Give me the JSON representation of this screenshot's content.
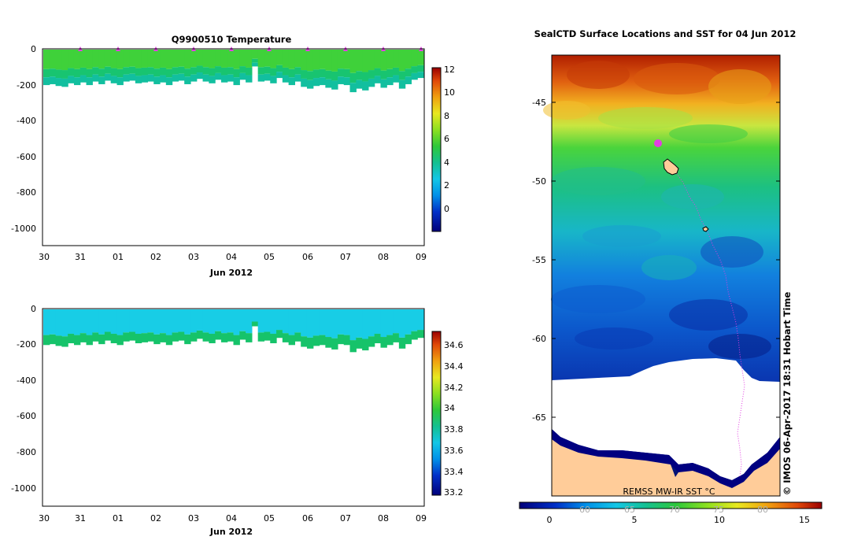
{
  "left_top": {
    "title": "Q9900510  Temperature",
    "y_ticks": [
      "0",
      "-200",
      "-400",
      "-600",
      "-800",
      "-1000"
    ],
    "x_ticks": [
      "30",
      "31",
      "01",
      "02",
      "03",
      "04",
      "05",
      "06",
      "07",
      "08",
      "09"
    ],
    "x_label": "Jun 2012",
    "colorbar_ticks": [
      "12",
      "10",
      "8",
      "6",
      "4",
      "2",
      "0"
    ]
  },
  "left_bottom": {
    "y_ticks": [
      "0",
      "-200",
      "-400",
      "-600",
      "-800",
      "-1000"
    ],
    "x_ticks": [
      "30",
      "31",
      "01",
      "02",
      "03",
      "04",
      "05",
      "06",
      "07",
      "08",
      "09"
    ],
    "x_label": "Jun 2012",
    "colorbar_ticks": [
      "34.6",
      "34.4",
      "34.2",
      "34",
      "33.8",
      "33.6",
      "33.4",
      "33.2"
    ]
  },
  "map": {
    "title": "SealCTD Surface Locations and SST for 04 Jun 2012",
    "lat_ticks": [
      "-45",
      "-50",
      "-55",
      "-60",
      "-65"
    ],
    "side_label": "© IMOS 06-Apr-2017 18:31 Hobart Time",
    "source_label": "REMSS MW-IR SST °C",
    "colorbar_ticks": [
      "0",
      "5",
      "10",
      "15"
    ],
    "colorbar_faint_ticks": [
      "60",
      "65",
      "70",
      "75",
      "80"
    ]
  },
  "colors": {
    "temp_surface": "#3fd13a",
    "temp_mid": "#18c470",
    "temp_deep": "#12bf9f",
    "sal_surface": "#18cde6",
    "sal_deep": "#16c36a",
    "marker": "#e23ee2",
    "land": "#ffcc99",
    "ice": "#ffffff",
    "coast": "#000080"
  },
  "chart_data": [
    {
      "type": "heatmap",
      "title": "Q9900510  Temperature",
      "xlabel": "Jun 2012",
      "ylabel": "",
      "x_categories": [
        "30",
        "31",
        "01",
        "02",
        "03",
        "04",
        "05",
        "06",
        "07",
        "08",
        "09"
      ],
      "ylim": [
        -1100,
        0
      ],
      "colorbar_range": [
        -1.5,
        12.5
      ],
      "profile_max_depth": [
        200,
        195,
        205,
        210,
        190,
        200,
        185,
        200,
        180,
        195,
        175,
        190,
        200,
        180,
        175,
        190,
        185,
        180,
        195,
        185,
        200,
        180,
        175,
        195,
        180,
        165,
        180,
        190,
        170,
        185,
        180,
        200,
        170,
        185,
        95,
        180,
        175,
        190,
        160,
        185,
        200,
        180,
        210,
        220,
        205,
        200,
        215,
        225,
        195,
        200,
        240,
        220,
        230,
        210,
        190,
        215,
        200,
        185,
        220,
        195,
        170,
        160
      ],
      "profile_markers": [
        1,
        1,
        1,
        1,
        1,
        1,
        1,
        1,
        1,
        1
      ]
    },
    {
      "type": "heatmap",
      "title": "",
      "xlabel": "Jun 2012",
      "ylabel": "",
      "x_categories": [
        "30",
        "31",
        "01",
        "02",
        "03",
        "04",
        "05",
        "06",
        "07",
        "08",
        "09"
      ],
      "ylim": [
        -1100,
        0
      ],
      "colorbar_range": [
        33.15,
        34.75
      ]
    },
    {
      "type": "heatmap",
      "title": "SealCTD Surface Locations and SST for 04 Jun 2012",
      "xlabel": "",
      "ylabel": "",
      "ylim": [
        -69.5,
        -42
      ],
      "colorbar_range": [
        -1.5,
        16.5
      ],
      "colorbar_ticks": [
        0,
        5,
        10,
        15
      ],
      "current_position": [
        -47.6
      ],
      "unit": "°C"
    }
  ]
}
